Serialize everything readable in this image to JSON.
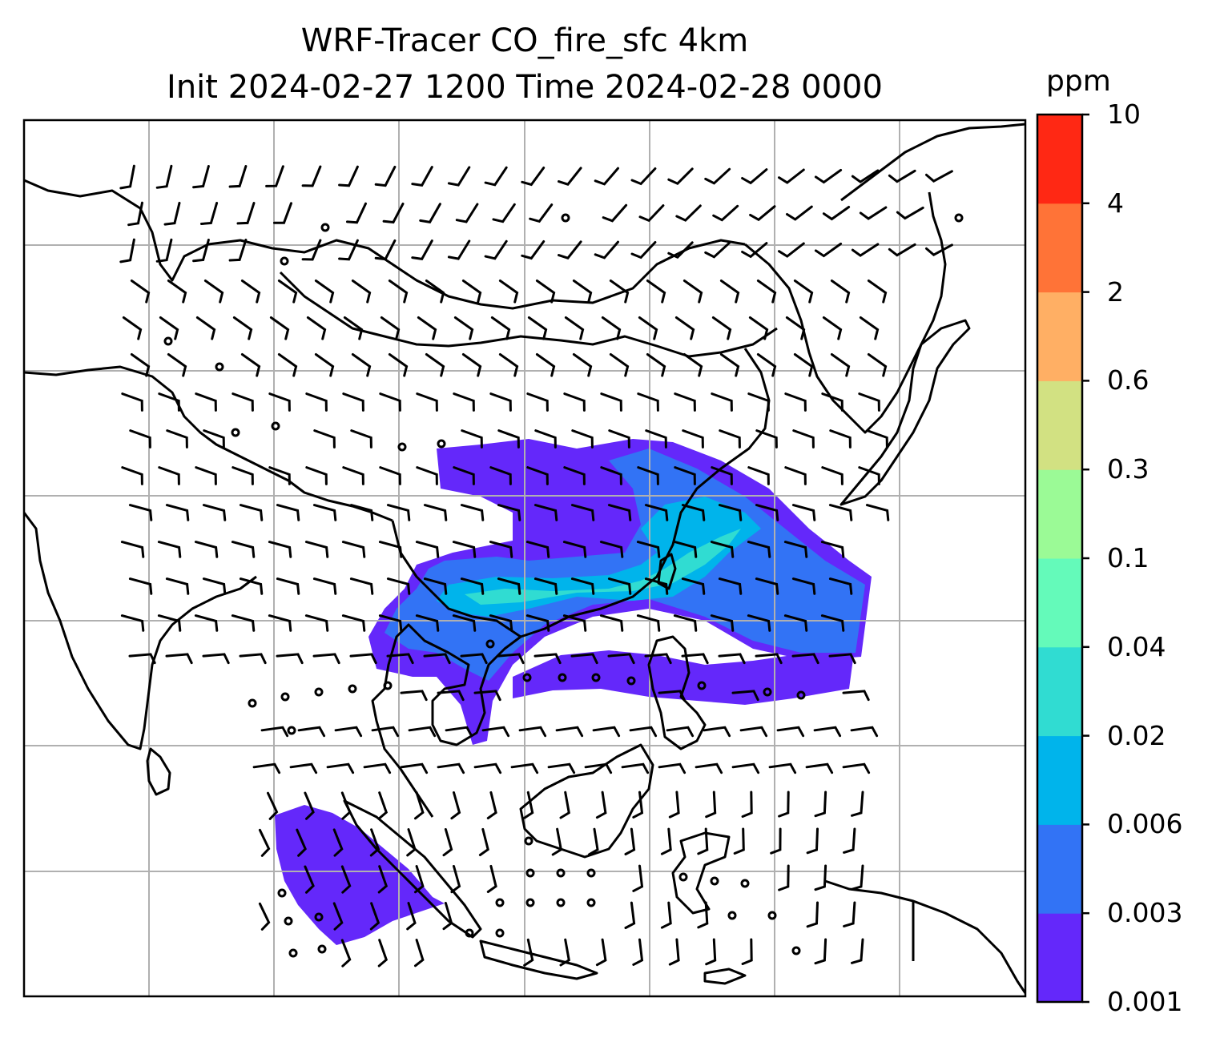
{
  "figure": {
    "title_line1": "WRF-Tracer CO_fire_sfc 4km",
    "title_line2": "Init 2024-02-27 1200 Time 2024-02-28 0000"
  },
  "colorbar": {
    "units": "ppm",
    "levels": [
      "0.001",
      "0.003",
      "0.006",
      "0.02",
      "0.04",
      "0.1",
      "0.3",
      "0.6",
      "2",
      "4",
      "10"
    ],
    "colors": [
      "#6428fa",
      "#3273f5",
      "#00b4eb",
      "#30dcd2",
      "#64faba",
      "#9bfa96",
      "#d2e182",
      "#ffaf64",
      "#ff7337",
      "#ff2814"
    ]
  },
  "style": {
    "coastline_color": "#000000",
    "grid_color": "#b0b0b0",
    "barb_color": "#000000"
  }
}
